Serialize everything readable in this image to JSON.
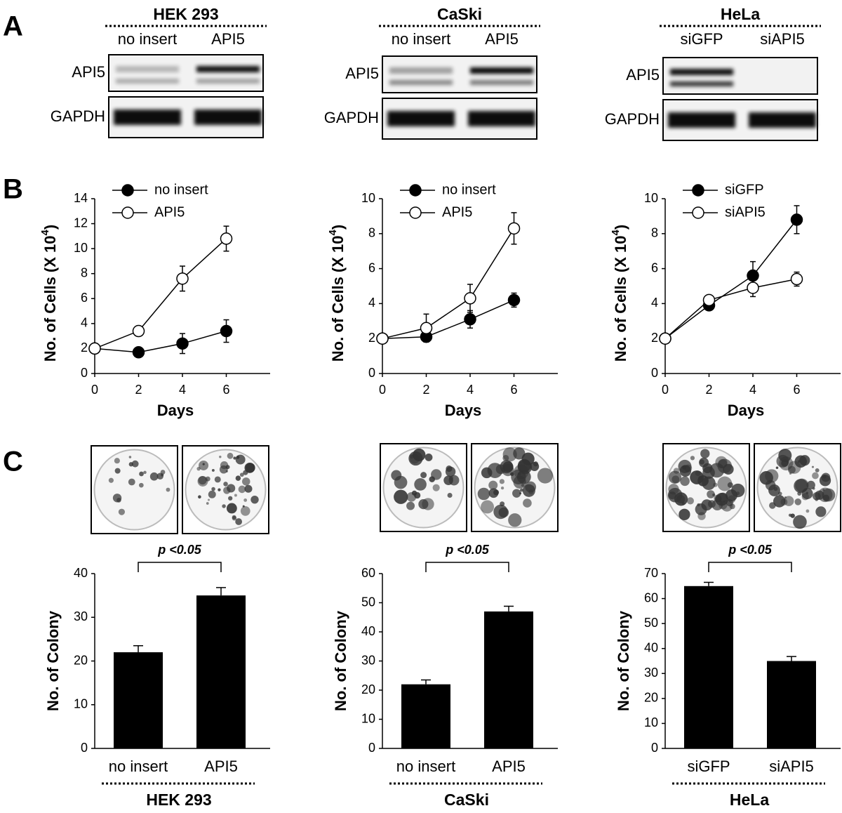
{
  "panels": [
    "A",
    "B",
    "C"
  ],
  "blots": [
    {
      "cell_line": "HEK 293",
      "lanes": [
        "no insert",
        "API5"
      ],
      "rows": [
        "API5",
        "GAPDH"
      ]
    },
    {
      "cell_line": "CaSki",
      "lanes": [
        "no insert",
        "API5"
      ],
      "rows": [
        "API5",
        "GAPDH"
      ]
    },
    {
      "cell_line": "HeLa",
      "lanes": [
        "siGFP",
        "siAPI5"
      ],
      "rows": [
        "API5",
        "GAPDH"
      ]
    }
  ],
  "chart_data": [
    {
      "type": "line",
      "xlabel": "Days",
      "ylabel": [
        "No. of Cells (X 10",
        "4",
        ")"
      ],
      "x": [
        0,
        2,
        4,
        6
      ],
      "xlim": [
        0,
        8
      ],
      "xticks": [
        0,
        2,
        4,
        6
      ],
      "ylim": [
        0,
        14
      ],
      "yticks": [
        0,
        2,
        4,
        6,
        8,
        10,
        12,
        14
      ],
      "legend": "upper left",
      "series": [
        {
          "name": "no insert",
          "color": "#000000",
          "marker": "filled",
          "values": [
            2.0,
            1.7,
            2.4,
            3.4
          ],
          "errors": [
            null,
            0.2,
            0.8,
            0.9
          ]
        },
        {
          "name": "API5",
          "color": "#000000",
          "marker": "open",
          "values": [
            2.0,
            3.4,
            7.6,
            10.8
          ],
          "errors": [
            null,
            0.2,
            1.0,
            1.0
          ]
        }
      ]
    },
    {
      "type": "line",
      "xlabel": "Days",
      "ylabel": [
        "No. of Cells (X 10",
        "4",
        ")"
      ],
      "x": [
        0,
        2,
        4,
        6
      ],
      "xlim": [
        0,
        8
      ],
      "xticks": [
        0,
        2,
        4,
        6
      ],
      "ylim": [
        0,
        10
      ],
      "yticks": [
        0,
        2,
        4,
        6,
        8,
        10
      ],
      "legend": "upper left",
      "series": [
        {
          "name": "no insert",
          "color": "#000000",
          "marker": "filled",
          "values": [
            2.0,
            2.1,
            3.1,
            4.2
          ],
          "errors": [
            null,
            0.3,
            0.5,
            0.4
          ]
        },
        {
          "name": "API5",
          "color": "#000000",
          "marker": "open",
          "values": [
            2.0,
            2.6,
            4.3,
            8.3
          ],
          "errors": [
            null,
            0.8,
            0.8,
            0.9
          ]
        }
      ]
    },
    {
      "type": "line",
      "xlabel": "Days",
      "ylabel": [
        "No. of Cells (X 10",
        "4",
        ")"
      ],
      "x": [
        0,
        2,
        4,
        6
      ],
      "xlim": [
        0,
        8
      ],
      "xticks": [
        0,
        2,
        4,
        6
      ],
      "ylim": [
        0,
        10
      ],
      "yticks": [
        0,
        2,
        4,
        6,
        8,
        10
      ],
      "legend": "upper left",
      "series": [
        {
          "name": "siGFP",
          "color": "#000000",
          "marker": "filled",
          "values": [
            2.0,
            3.9,
            5.6,
            8.8
          ],
          "errors": [
            null,
            0.2,
            0.8,
            0.8
          ]
        },
        {
          "name": "siAPI5",
          "color": "#000000",
          "marker": "open",
          "values": [
            2.0,
            4.2,
            4.9,
            5.4
          ],
          "errors": [
            null,
            0.2,
            0.5,
            0.4
          ]
        }
      ]
    },
    {
      "type": "bar",
      "ylabel": "No. of Colony",
      "categories": [
        "no insert",
        "API5"
      ],
      "values": [
        22,
        35
      ],
      "errors": [
        1.5,
        1.8
      ],
      "color": "#000000",
      "ylim": [
        0,
        40
      ],
      "yticks": [
        0,
        10,
        20,
        30,
        40
      ],
      "annotation": "p <0.05",
      "cell_line": "HEK 293"
    },
    {
      "type": "bar",
      "ylabel": "No. of Colony",
      "categories": [
        "no insert",
        "API5"
      ],
      "values": [
        22,
        47
      ],
      "errors": [
        1.5,
        1.8
      ],
      "color": "#000000",
      "ylim": [
        0,
        60
      ],
      "yticks": [
        0,
        10,
        20,
        30,
        40,
        50,
        60
      ],
      "annotation": "p <0.05",
      "cell_line": "CaSki"
    },
    {
      "type": "bar",
      "ylabel": "No. of Colony",
      "categories": [
        "siGFP",
        "siAPI5"
      ],
      "values": [
        65,
        35
      ],
      "errors": [
        1.5,
        1.8
      ],
      "color": "#000000",
      "ylim": [
        0,
        70
      ],
      "yticks": [
        0,
        10,
        20,
        30,
        40,
        50,
        60,
        70
      ],
      "annotation": "p <0.05",
      "cell_line": "HeLa"
    }
  ]
}
